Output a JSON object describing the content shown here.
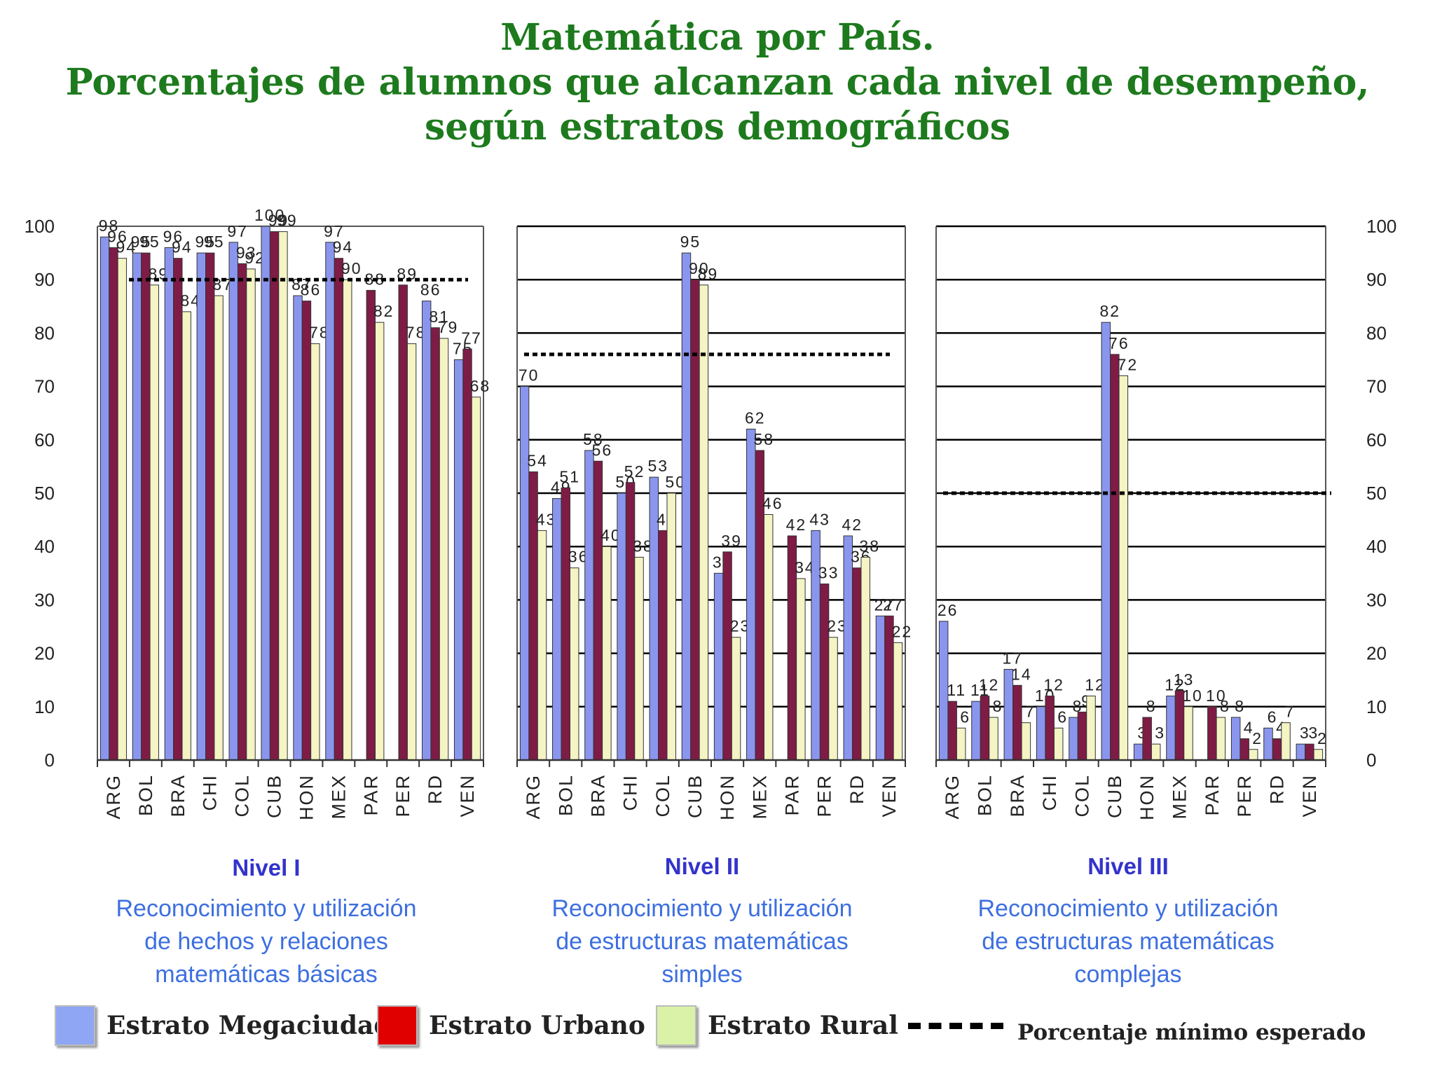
{
  "title_lines": [
    "Matemática por País.",
    "Porcentajes de alumnos que alcanzan cada nivel de desempeño,",
    "según estratos demográficos"
  ],
  "legend": {
    "megaciudad": "Estrato Megaciudad",
    "urbano": "Estrato Urbano",
    "rural": "Estrato Rural",
    "minimo": "Porcentaje mínimo esperado"
  },
  "colors": {
    "megaciudad": "#8a96ee",
    "urbano": "#7e1c45",
    "rural": "#f4f4c4",
    "urbano_legend": "#e00000",
    "rural_legend": "#d9f2a8",
    "title": "#1d7a1d",
    "caption": "#3d6fe0"
  },
  "panels": [
    {
      "level": "Nivel I",
      "caption": [
        "Reconocimiento y utilización",
        "de hechos y relaciones",
        "matemáticas básicas"
      ]
    },
    {
      "level": "Nivel II",
      "caption": [
        "Reconocimiento y utilización",
        "de estructuras matemáticas",
        "simples"
      ]
    },
    {
      "level": "Nivel III",
      "caption": [
        "Reconocimiento y utilización",
        "de estructuras matemáticas",
        "complejas"
      ]
    }
  ],
  "chart_data": [
    {
      "type": "bar",
      "title": "Nivel I",
      "categories": [
        "ARG",
        "BOL",
        "BRA",
        "CHI",
        "COL",
        "CUB",
        "HON",
        "MEX",
        "PAR",
        "PER",
        "RD",
        "VEN"
      ],
      "ylim": [
        0,
        100
      ],
      "yticks": [
        0,
        10,
        20,
        30,
        40,
        50,
        60,
        70,
        80,
        90,
        100
      ],
      "minimo_esperado": 90,
      "series": [
        {
          "name": "Estrato Megaciudad",
          "values": [
            98,
            95,
            96,
            95,
            97,
            100,
            87,
            97,
            null,
            null,
            86,
            75
          ]
        },
        {
          "name": "Estrato Urbano",
          "values": [
            96,
            95,
            94,
            95,
            93,
            99,
            86,
            94,
            88,
            89,
            81,
            77
          ]
        },
        {
          "name": "Estrato Rural",
          "values": [
            94,
            89,
            84,
            87,
            92,
            99,
            78,
            90,
            82,
            78,
            79,
            68
          ]
        }
      ]
    },
    {
      "type": "bar",
      "title": "Nivel II",
      "categories": [
        "ARG",
        "BOL",
        "BRA",
        "CHI",
        "COL",
        "CUB",
        "HON",
        "MEX",
        "PAR",
        "PER",
        "RD",
        "VEN"
      ],
      "ylim": [
        0,
        100
      ],
      "yticks": [
        0,
        10,
        20,
        30,
        40,
        50,
        60,
        70,
        80,
        90,
        100
      ],
      "minimo_esperado": 76,
      "series": [
        {
          "name": "Estrato Megaciudad",
          "values": [
            70,
            49,
            58,
            50,
            53,
            95,
            35,
            62,
            null,
            43,
            42,
            27
          ]
        },
        {
          "name": "Estrato Urbano",
          "values": [
            54,
            51,
            56,
            52,
            43,
            90,
            39,
            58,
            42,
            33,
            36,
            27
          ]
        },
        {
          "name": "Estrato Rural",
          "values": [
            43,
            36,
            40,
            38,
            50,
            89,
            23,
            46,
            34,
            23,
            38,
            22
          ]
        }
      ]
    },
    {
      "type": "bar",
      "title": "Nivel III",
      "categories": [
        "ARG",
        "BOL",
        "BRA",
        "CHI",
        "COL",
        "CUB",
        "HON",
        "MEX",
        "PAR",
        "PER",
        "RD",
        "VEN"
      ],
      "ylim": [
        0,
        100
      ],
      "yticks": [
        0,
        10,
        20,
        30,
        40,
        50,
        60,
        70,
        80,
        90,
        100
      ],
      "minimo_esperado": 50,
      "series": [
        {
          "name": "Estrato Megaciudad",
          "values": [
            26,
            11,
            17,
            10,
            8,
            82,
            3,
            12,
            null,
            8,
            6,
            3
          ]
        },
        {
          "name": "Estrato Urbano",
          "values": [
            11,
            12,
            14,
            12,
            9,
            76,
            8,
            13,
            10,
            4,
            4,
            3
          ]
        },
        {
          "name": "Estrato Rural",
          "values": [
            6,
            8,
            7,
            6,
            12,
            72,
            3,
            10,
            8,
            2,
            7,
            2
          ]
        }
      ]
    }
  ]
}
